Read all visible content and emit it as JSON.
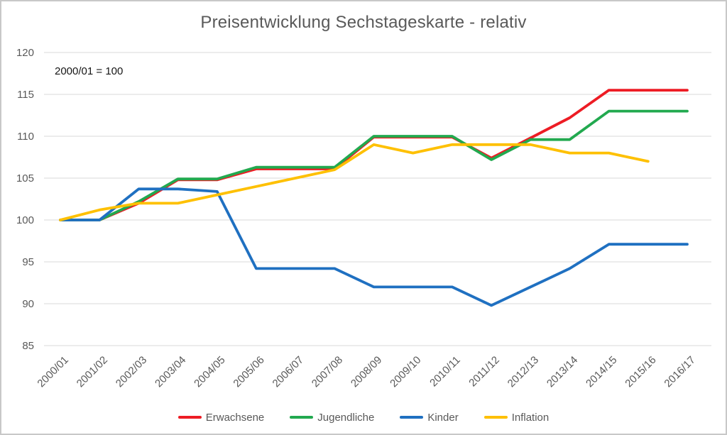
{
  "chart_data": {
    "type": "line",
    "title": "Preisentwicklung Sechstageskarte - relativ",
    "annotation": "2000/01 = 100",
    "categories": [
      "2000/01",
      "2001/02",
      "2002/03",
      "2003/04",
      "2004/05",
      "2005/06",
      "2006/07",
      "2007/08",
      "2008/09",
      "2009/10",
      "2010/11",
      "2011/12",
      "2012/13",
      "2013/14",
      "2014/15",
      "2015/16",
      "2016/17"
    ],
    "series": [
      {
        "name": "Erwachsene",
        "color": "#ed1c24",
        "values": [
          100,
          100,
          102,
          104.8,
          104.8,
          106.1,
          106.1,
          106.1,
          109.9,
          109.9,
          109.9,
          107.4,
          109.8,
          112.2,
          115.5,
          115.5,
          115.5
        ]
      },
      {
        "name": "Jugendliche",
        "color": "#22a94f",
        "values": [
          100,
          100,
          102.2,
          104.9,
          104.9,
          106.3,
          106.3,
          106.3,
          110,
          110,
          110,
          107.2,
          109.6,
          109.6,
          113,
          113,
          113
        ]
      },
      {
        "name": "Kinder",
        "color": "#1f70c1",
        "values": [
          100,
          100,
          103.7,
          103.7,
          103.4,
          94.2,
          94.2,
          94.2,
          92,
          92,
          92,
          89.8,
          92,
          94.2,
          97.1,
          97.1,
          97.1
        ]
      },
      {
        "name": "Inflation",
        "color": "#fec000",
        "values": [
          100,
          101.2,
          102,
          102,
          103,
          104,
          105,
          106,
          109,
          108,
          109,
          109,
          109,
          108,
          108,
          107,
          null
        ]
      }
    ],
    "ylim": [
      85,
      120
    ],
    "yticks": [
      85,
      90,
      95,
      100,
      105,
      110,
      115,
      120
    ],
    "grid": "horizontal",
    "legend_position": "bottom"
  },
  "colors": {
    "title_text": "#595959",
    "axis_text": "#595959",
    "annotation_text": "#161616",
    "gridline": "#d9d9d9",
    "frame_border": "#c8c8c8",
    "background": "#ffffff"
  }
}
